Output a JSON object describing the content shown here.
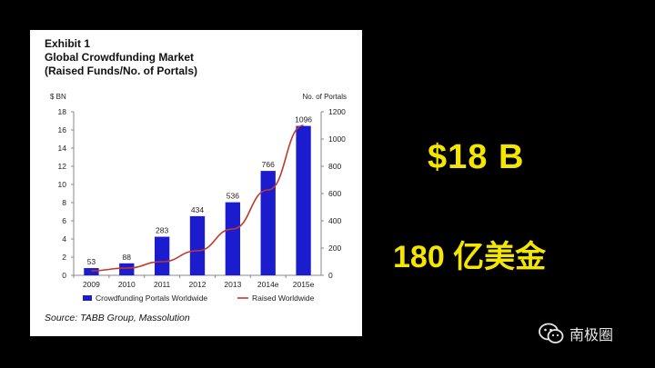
{
  "exhibit": {
    "title_line1": "Exhibit 1",
    "title_line2": "Global Crowdfunding Market",
    "title_line3": "(Raised Funds/No. of Portals)",
    "source": "Source: TABB Group, Massolution"
  },
  "chart_data": {
    "type": "bar",
    "title": "Global Crowdfunding Market (Raised Funds/No. of Portals)",
    "categories": [
      "2009",
      "2010",
      "2011",
      "2012",
      "2013",
      "2014e",
      "2015e"
    ],
    "series": [
      {
        "name": "Crowdfunding Portals Worldwide",
        "type": "bar",
        "axis": "right",
        "color": "#1c1ccf",
        "values": [
          53,
          88,
          283,
          434,
          536,
          766,
          1096
        ]
      },
      {
        "name": "Raised Worldwide",
        "type": "line",
        "axis": "left",
        "color": "#c0392b",
        "values": [
          0.5,
          0.8,
          1.5,
          2.7,
          5.1,
          9.4,
          16.5
        ]
      }
    ],
    "ylabel_left": "$ BN",
    "ylabel_right": "No. of Portals",
    "ylim_left": [
      0,
      18
    ],
    "ylim_right": [
      0,
      1200
    ],
    "yticks_left": [
      0,
      2,
      4,
      6,
      8,
      10,
      12,
      14,
      16,
      18
    ],
    "yticks_right": [
      0,
      200,
      400,
      600,
      800,
      1000,
      1200
    ],
    "legend_position": "bottom",
    "grid": false
  },
  "slide": {
    "amount_usd": "$18 B",
    "amount_cny": "180 亿美金",
    "brand": "南极圈",
    "brand_icon": "wechat-icon"
  }
}
